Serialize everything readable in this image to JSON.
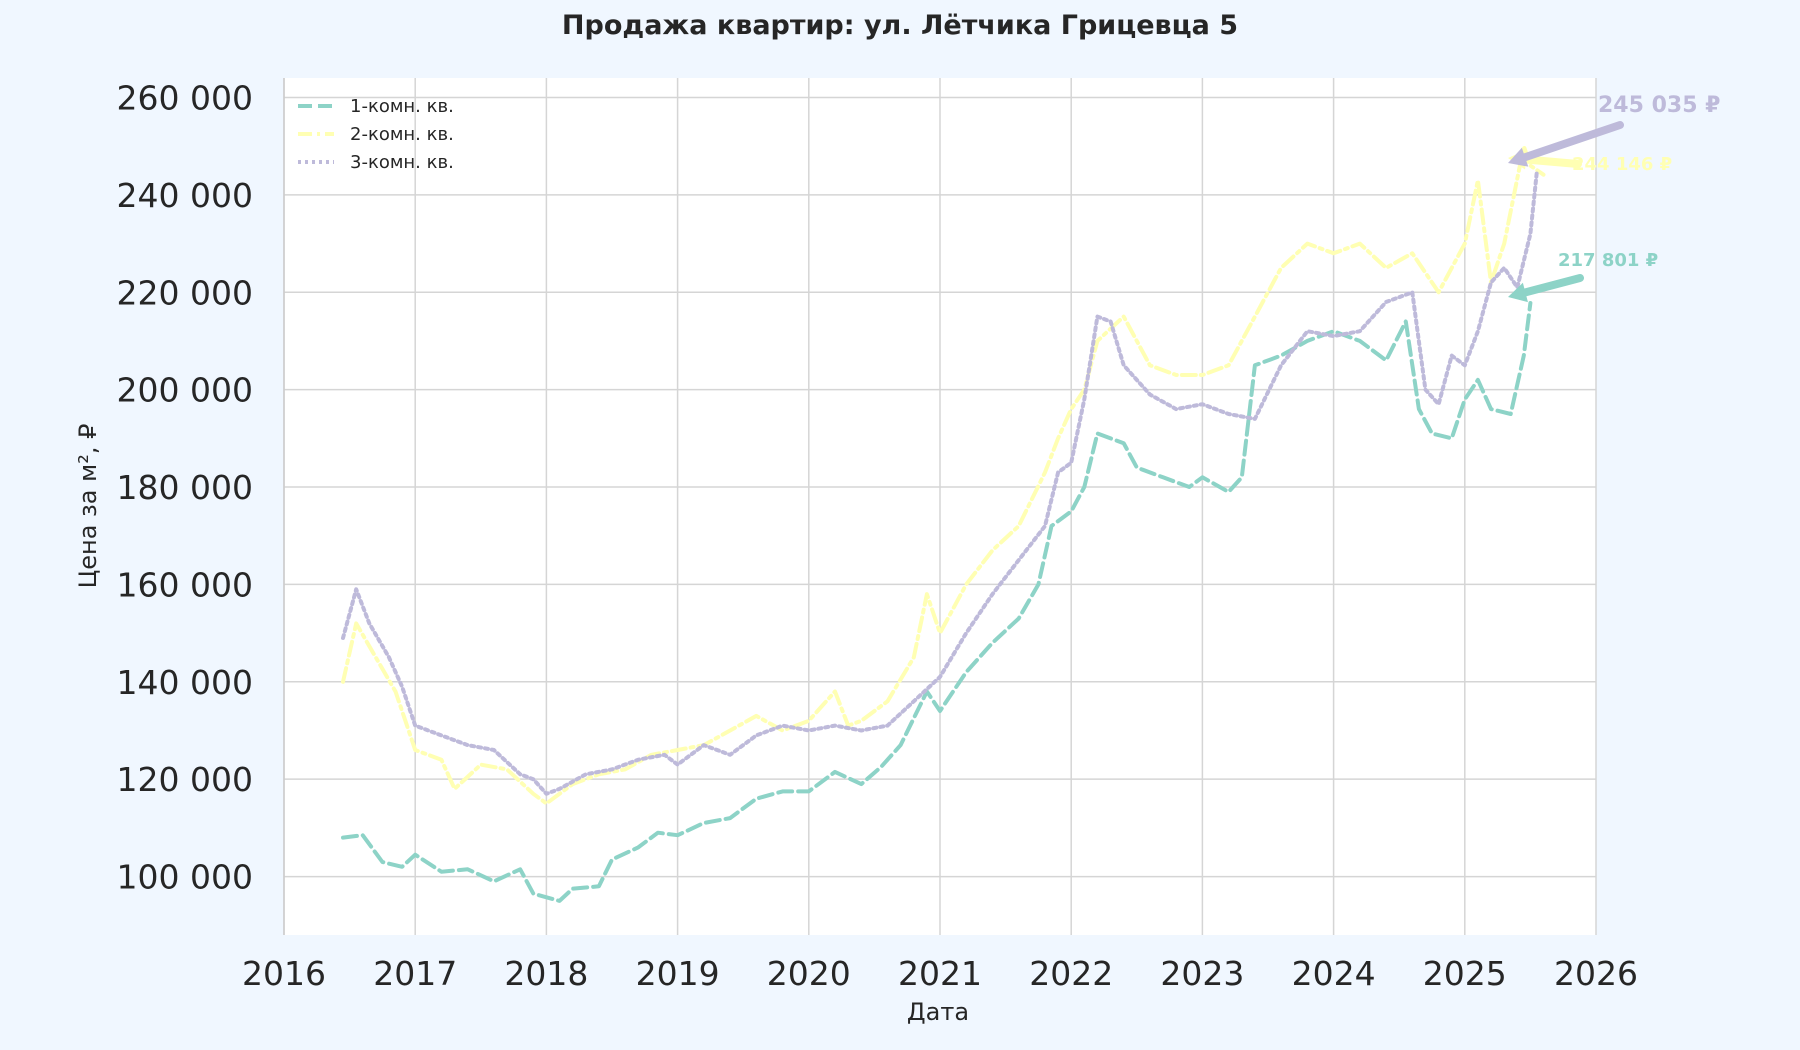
{
  "chart_data": {
    "type": "line",
    "title": "Продажа квартир: ул. Лётчика Грицевца 5",
    "xlabel": "Дата",
    "ylabel": "Цена за м², ₽",
    "xlim": [
      2016,
      2026
    ],
    "ylim": [
      88000,
      264000
    ],
    "x_ticks": [
      2016,
      2017,
      2018,
      2019,
      2020,
      2021,
      2022,
      2023,
      2024,
      2025,
      2026
    ],
    "x_tick_labels": [
      "2016",
      "2017",
      "2018",
      "2019",
      "2020",
      "2021",
      "2022",
      "2023",
      "2024",
      "2025",
      "2026"
    ],
    "y_ticks": [
      100000,
      120000,
      140000,
      160000,
      180000,
      200000,
      220000,
      240000,
      260000
    ],
    "y_tick_labels": [
      "100 000",
      "120 000",
      "140 000",
      "160 000",
      "180 000",
      "200 000",
      "220 000",
      "240 000",
      "260 000"
    ],
    "grid": true,
    "legend_position": "top-left",
    "series": [
      {
        "name": "1-комн. кв.",
        "color": "#8dd3c7",
        "dash": "dashed",
        "end_label": "217 801 ₽",
        "x": [
          2016.45,
          2016.6,
          2016.75,
          2016.9,
          2017.0,
          2017.2,
          2017.4,
          2017.6,
          2017.8,
          2017.9,
          2018.1,
          2018.2,
          2018.4,
          2018.5,
          2018.7,
          2018.85,
          2019.0,
          2019.2,
          2019.4,
          2019.6,
          2019.8,
          2020.0,
          2020.2,
          2020.4,
          2020.55,
          2020.7,
          2020.9,
          2021.0,
          2021.2,
          2021.4,
          2021.6,
          2021.75,
          2021.85,
          2022.0,
          2022.1,
          2022.2,
          2022.4,
          2022.5,
          2022.7,
          2022.9,
          2023.0,
          2023.2,
          2023.3,
          2023.4,
          2023.6,
          2023.8,
          2024.0,
          2024.2,
          2024.4,
          2024.55,
          2024.65,
          2024.75,
          2024.9,
          2025.0,
          2025.1,
          2025.2,
          2025.35,
          2025.45,
          2025.5
        ],
        "y": [
          108000,
          108500,
          103000,
          102000,
          104500,
          101000,
          101500,
          99000,
          101500,
          96500,
          95000,
          97500,
          98000,
          103500,
          106000,
          109000,
          108500,
          111000,
          112000,
          116000,
          117500,
          117500,
          121500,
          119000,
          122500,
          127000,
          138000,
          134000,
          142000,
          148000,
          153000,
          160000,
          172000,
          175000,
          180000,
          191000,
          189000,
          184000,
          182000,
          180000,
          182000,
          179000,
          182000,
          205000,
          207000,
          210000,
          212000,
          210000,
          206000,
          214000,
          196000,
          191000,
          190000,
          198000,
          202000,
          196000,
          195000,
          207000,
          217801
        ]
      },
      {
        "name": "2-комн. кв.",
        "color": "#ffffb3",
        "dash": "dashdot",
        "end_label": "244 146 ₽",
        "x": [
          2016.45,
          2016.55,
          2016.7,
          2016.85,
          2017.0,
          2017.2,
          2017.3,
          2017.5,
          2017.7,
          2017.9,
          2018.0,
          2018.2,
          2018.4,
          2018.6,
          2018.8,
          2019.0,
          2019.2,
          2019.4,
          2019.6,
          2019.8,
          2020.0,
          2020.2,
          2020.3,
          2020.4,
          2020.6,
          2020.8,
          2020.9,
          2021.0,
          2021.2,
          2021.4,
          2021.6,
          2021.8,
          2021.9,
          2022.0,
          2022.1,
          2022.2,
          2022.4,
          2022.6,
          2022.8,
          2023.0,
          2023.2,
          2023.4,
          2023.6,
          2023.8,
          2024.0,
          2024.2,
          2024.4,
          2024.6,
          2024.8,
          2025.0,
          2025.1,
          2025.2,
          2025.3,
          2025.45,
          2025.5,
          2025.6
        ],
        "y": [
          140000,
          152000,
          145000,
          138000,
          126000,
          124000,
          118000,
          123000,
          122000,
          117000,
          115000,
          119000,
          121000,
          122000,
          125000,
          126000,
          127000,
          130000,
          133000,
          130000,
          132000,
          138000,
          131000,
          132000,
          136000,
          145000,
          158000,
          150000,
          160000,
          167000,
          172000,
          183000,
          190000,
          196000,
          200000,
          210000,
          215000,
          205000,
          203000,
          203000,
          205000,
          215000,
          225000,
          230000,
          228000,
          230000,
          225000,
          228000,
          220000,
          230000,
          243000,
          222000,
          230000,
          250000,
          246000,
          244146
        ]
      },
      {
        "name": "3-комн. кв.",
        "color": "#bebada",
        "dash": "dotted",
        "end_label": "245 035 ₽",
        "x": [
          2016.45,
          2016.55,
          2016.65,
          2016.8,
          2016.9,
          2017.0,
          2017.2,
          2017.4,
          2017.6,
          2017.8,
          2017.9,
          2018.0,
          2018.1,
          2018.3,
          2018.5,
          2018.7,
          2018.9,
          2019.0,
          2019.2,
          2019.4,
          2019.6,
          2019.8,
          2020.0,
          2020.2,
          2020.4,
          2020.6,
          2020.8,
          2021.0,
          2021.2,
          2021.4,
          2021.6,
          2021.8,
          2021.9,
          2022.0,
          2022.1,
          2022.2,
          2022.3,
          2022.4,
          2022.6,
          2022.8,
          2023.0,
          2023.2,
          2023.4,
          2023.6,
          2023.8,
          2024.0,
          2024.2,
          2024.4,
          2024.6,
          2024.7,
          2024.8,
          2024.9,
          2025.0,
          2025.1,
          2025.2,
          2025.3,
          2025.4,
          2025.5,
          2025.55
        ],
        "y": [
          149000,
          159000,
          152000,
          145000,
          139000,
          131000,
          129000,
          127000,
          126000,
          121000,
          120000,
          117000,
          118000,
          121000,
          122000,
          124000,
          125000,
          123000,
          127000,
          125000,
          129000,
          131000,
          130000,
          131000,
          130000,
          131000,
          136000,
          141000,
          150000,
          158000,
          165000,
          172000,
          183000,
          185000,
          198000,
          215000,
          214000,
          205000,
          199000,
          196000,
          197000,
          195000,
          194000,
          205000,
          212000,
          211000,
          212000,
          218000,
          220000,
          200000,
          197000,
          207000,
          205000,
          212000,
          222000,
          225000,
          221000,
          232000,
          245035
        ]
      }
    ]
  }
}
